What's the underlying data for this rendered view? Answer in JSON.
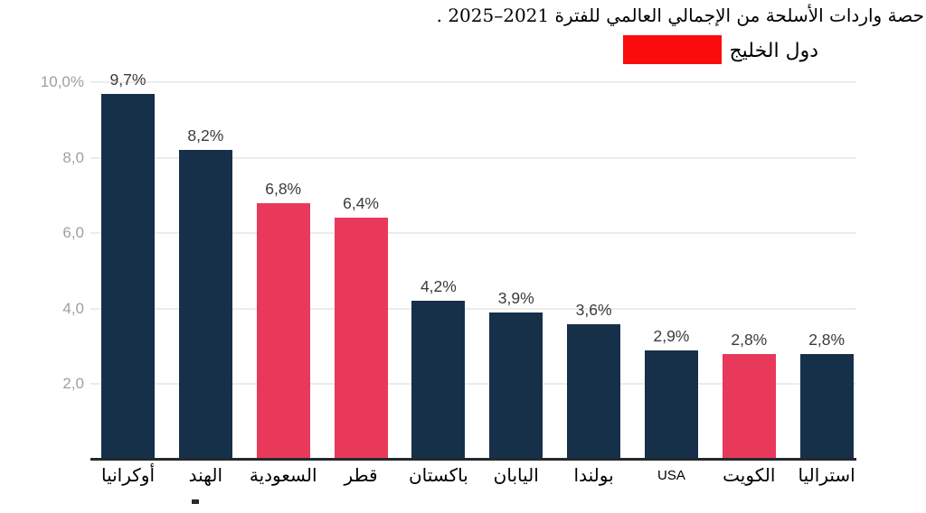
{
  "title": "حصة واردات الأسلحة من الإجمالي العالمي للفترة 2021–2025 .",
  "legend": {
    "label": "دول الخليج",
    "swatch_color": "#fb0c0c"
  },
  "colors": {
    "bar_default": "#16304a",
    "bar_highlight": "#e8395a",
    "gridline": "#ececec",
    "axis_line": "#24292e",
    "ytick_text": "#9da0a3",
    "data_label_text": "#3b3b3b"
  },
  "chart_data": {
    "type": "bar",
    "title": "حصة واردات الأسلحة من الإجمالي العالمي للفترة 2021–2025 .",
    "legend_entries": [
      {
        "label": "دول الخليج",
        "color": "#fb0c0c",
        "meaning": "highlighted Gulf-state bars"
      }
    ],
    "categories": [
      "أوكرانيا",
      "الهند",
      "السعودية",
      "قطر",
      "باكستان",
      "اليابان",
      "بولندا",
      "USA",
      "الكويت",
      "استراليا"
    ],
    "values": [
      9.7,
      8.2,
      6.8,
      6.4,
      4.2,
      3.9,
      3.6,
      2.9,
      2.8,
      2.8
    ],
    "data_labels": [
      "9,7%",
      "8,2%",
      "6,8%",
      "6,4%",
      "4,2%",
      "3,9%",
      "3,6%",
      "2,9%",
      "2,8%",
      "2,8%"
    ],
    "highlighted": [
      false,
      false,
      true,
      true,
      false,
      false,
      false,
      false,
      true,
      false
    ],
    "y_ticks": [
      {
        "value": 10,
        "label": "10,0%"
      },
      {
        "value": 8,
        "label": "8,0"
      },
      {
        "value": 6,
        "label": "6,0"
      },
      {
        "value": 4,
        "label": "4,0"
      },
      {
        "value": 2,
        "label": "2,0"
      }
    ],
    "ylim": [
      0,
      10
    ],
    "xlabel": "",
    "ylabel": "",
    "grid": true,
    "legend_position": "top-right"
  }
}
